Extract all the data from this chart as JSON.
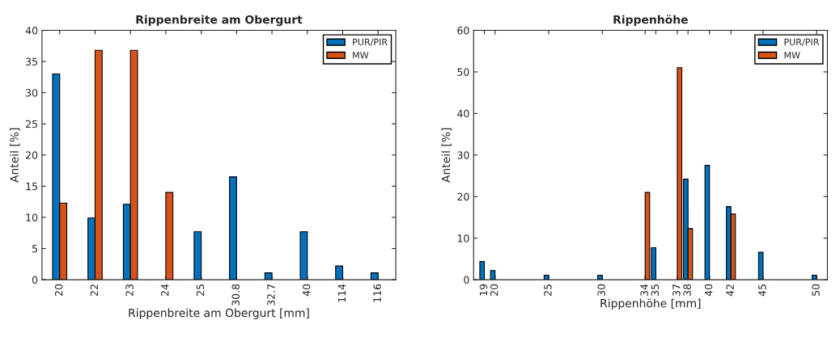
{
  "chart_data": [
    {
      "type": "bar",
      "title": "Rippenbreite am Obergurt",
      "xlabel": "Rippenbreite am Obergurt [mm]",
      "ylabel": "Anteil [%]",
      "categories": [
        "20",
        "22",
        "23",
        "24",
        "25",
        "30.8",
        "32.7",
        "40",
        "114",
        "116"
      ],
      "series": [
        {
          "name": "PUR/PIR",
          "color": "#0072bd",
          "values": [
            33.0,
            9.9,
            12.1,
            null,
            7.7,
            16.5,
            1.1,
            7.7,
            2.2,
            1.1
          ]
        },
        {
          "name": "MW",
          "color": "#d95319",
          "values": [
            12.3,
            36.8,
            36.8,
            14.0,
            null,
            null,
            null,
            null,
            null,
            null
          ]
        }
      ],
      "ylim": [
        0,
        40
      ],
      "yticks": [
        0,
        5,
        10,
        15,
        20,
        25,
        30,
        35,
        40
      ],
      "grid": false,
      "legend": "top right"
    },
    {
      "type": "bar",
      "title": "Rippenhöhe",
      "xlabel": "Rippenhöhe [mm]",
      "ylabel": "Anteil [%]",
      "x": [
        19,
        20,
        25,
        30,
        34,
        35,
        37,
        38,
        40,
        42,
        45,
        50
      ],
      "series": [
        {
          "name": "PUR/PIR",
          "color": "#0072bd",
          "values": [
            4.4,
            2.2,
            1.1,
            1.1,
            null,
            7.7,
            null,
            24.2,
            27.5,
            17.6,
            6.6,
            1.1
          ]
        },
        {
          "name": "MW",
          "color": "#d95319",
          "values": [
            null,
            null,
            null,
            null,
            21.0,
            null,
            51.0,
            12.3,
            null,
            15.8,
            null,
            null
          ]
        }
      ],
      "xlim": [
        18,
        51
      ],
      "xticks": [
        19,
        20,
        25,
        30,
        34,
        35,
        37,
        38,
        40,
        42,
        45,
        50
      ],
      "ylim": [
        0,
        60
      ],
      "yticks": [
        0,
        10,
        20,
        30,
        40,
        50,
        60
      ],
      "grid": false,
      "legend": "top right"
    }
  ]
}
